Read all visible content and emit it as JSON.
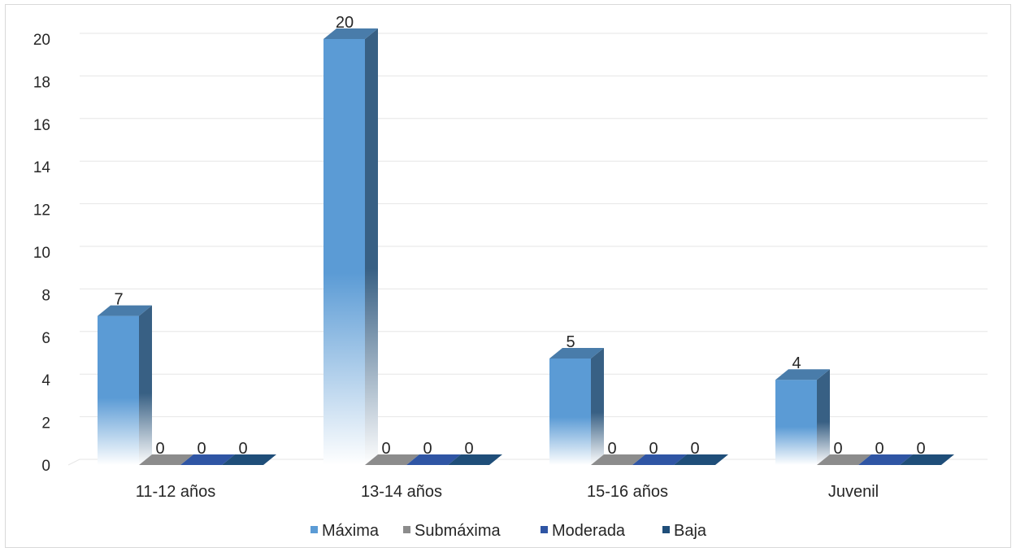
{
  "chart_data": {
    "type": "bar",
    "title": "",
    "xlabel": "",
    "ylabel": "",
    "categories": [
      "11-12 años",
      "13-14 años",
      "15-16 años",
      "Juvenil"
    ],
    "series": [
      {
        "name": "Máxima",
        "values": [
          7,
          20,
          5,
          4
        ],
        "color": "#5b9bd5"
      },
      {
        "name": "Submáxima",
        "values": [
          0,
          0,
          0,
          0
        ],
        "color": "#8c8c8c"
      },
      {
        "name": "Moderada",
        "values": [
          0,
          0,
          0,
          0
        ],
        "color": "#2f55a4"
      },
      {
        "name": "Baja",
        "values": [
          0,
          0,
          0,
          0
        ],
        "color": "#1f4e79"
      }
    ],
    "ylim": [
      0,
      20
    ],
    "yticks": [
      0,
      2,
      4,
      6,
      8,
      10,
      12,
      14,
      16,
      18,
      20
    ],
    "grid": true,
    "legend_position": "bottom",
    "bar_style": "3d"
  }
}
